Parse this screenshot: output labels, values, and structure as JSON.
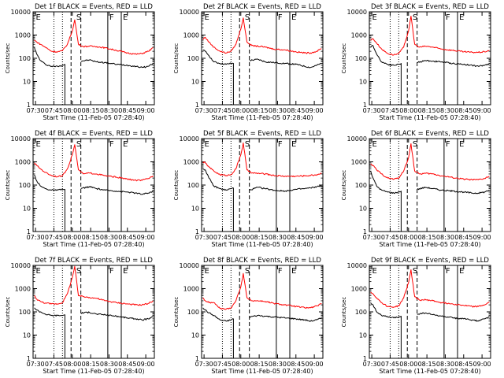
{
  "figure": {
    "title_template": "Det {n}f BLACK = Events, RED = LLD",
    "xlabel": "Start Time (11-Feb-05 07:28:40)",
    "ylabel": "Counts/sec",
    "xticks": [
      "07:30",
      "07:45",
      "08:00",
      "08:15",
      "08:30",
      "08:45",
      "09:00"
    ],
    "yticks": [
      "1",
      "10",
      "100",
      "1000",
      "10000"
    ],
    "markers": [
      "E",
      "S",
      "F",
      "E"
    ],
    "colors": {
      "events": "#000000",
      "lld": "#ff0000"
    }
  },
  "chart_data": [
    {
      "type": "line",
      "title": "Det 1f BLACK = Events, RED = LLD",
      "xlabel": "Start Time (11-Feb-05 07:28:40)",
      "ylabel": "Counts/sec",
      "yscale": "log",
      "ylim": [
        1,
        10000
      ],
      "xlim": [
        "07:28",
        "09:07"
      ],
      "series": [
        {
          "name": "Events",
          "x": [
            "07:29",
            "07:31",
            "07:34",
            "07:38",
            "07:43",
            "07:48",
            "07:52",
            "07:54",
            "07:59",
            "08:07",
            "08:14",
            "08:20",
            "08:27",
            "08:36",
            "08:45",
            "08:52",
            "08:57",
            "09:02",
            "09:06"
          ],
          "values": [
            300,
            150,
            80,
            55,
            45,
            45,
            50,
            55,
            null,
            75,
            85,
            70,
            65,
            55,
            50,
            45,
            40,
            45,
            60
          ]
        },
        {
          "name": "LLD",
          "x": [
            "07:29",
            "07:31",
            "07:34",
            "07:38",
            "07:43",
            "07:48",
            "07:52",
            "07:56",
            "08:00",
            "08:02",
            "08:05",
            "08:09",
            "08:14",
            "08:20",
            "08:27",
            "08:36",
            "08:45",
            "08:52",
            "08:57",
            "09:02",
            "09:06"
          ],
          "values": [
            600,
            500,
            400,
            300,
            200,
            190,
            210,
            400,
            1500,
            4500,
            400,
            320,
            330,
            320,
            280,
            220,
            170,
            150,
            160,
            200,
            280
          ]
        }
      ]
    },
    {
      "type": "line",
      "title": "Det 2f BLACK = Events, RED = LLD",
      "xlabel": "Start Time (11-Feb-05 07:28:40)",
      "ylabel": "Counts/sec",
      "yscale": "log",
      "ylim": [
        1,
        10000
      ],
      "xlim": [
        "07:28",
        "09:07"
      ],
      "series": [
        {
          "name": "Events",
          "x": [
            "07:29",
            "07:31",
            "07:34",
            "07:38",
            "07:43",
            "07:48",
            "07:52",
            "07:54",
            "07:59",
            "08:07",
            "08:14",
            "08:20",
            "08:27",
            "08:36",
            "08:45",
            "08:52",
            "08:57",
            "09:02",
            "09:06"
          ],
          "values": [
            220,
            200,
            130,
            70,
            60,
            55,
            60,
            60,
            null,
            80,
            90,
            70,
            65,
            60,
            55,
            45,
            40,
            50,
            60
          ]
        },
        {
          "name": "LLD",
          "x": [
            "07:29",
            "07:31",
            "07:34",
            "07:38",
            "07:43",
            "07:48",
            "07:52",
            "07:56",
            "08:00",
            "08:02",
            "08:05",
            "08:09",
            "08:14",
            "08:20",
            "08:27",
            "08:36",
            "08:45",
            "08:52",
            "08:57",
            "09:02",
            "09:06"
          ],
          "values": [
            650,
            800,
            500,
            300,
            200,
            170,
            200,
            400,
            1800,
            5500,
            500,
            350,
            330,
            300,
            250,
            230,
            190,
            170,
            170,
            200,
            260
          ]
        }
      ]
    },
    {
      "type": "line",
      "title": "Det 3f BLACK = Events, RED = LLD",
      "xlabel": "Start Time (11-Feb-05 07:28:40)",
      "ylabel": "Counts/sec",
      "yscale": "log",
      "ylim": [
        1,
        10000
      ],
      "xlim": [
        "07:28",
        "09:07"
      ],
      "series": [
        {
          "name": "Events",
          "x": [
            "07:29",
            "07:31",
            "07:34",
            "07:38",
            "07:43",
            "07:48",
            "07:52",
            "07:54",
            "07:59",
            "08:07",
            "08:14",
            "08:20",
            "08:27",
            "08:36",
            "08:45",
            "08:52",
            "08:57",
            "09:02",
            "09:06"
          ],
          "values": [
            300,
            350,
            150,
            70,
            55,
            50,
            55,
            60,
            null,
            65,
            80,
            75,
            70,
            60,
            55,
            50,
            45,
            50,
            60
          ]
        },
        {
          "name": "LLD",
          "x": [
            "07:29",
            "07:31",
            "07:34",
            "07:38",
            "07:43",
            "07:48",
            "07:52",
            "07:56",
            "08:00",
            "08:02",
            "08:05",
            "08:09",
            "08:14",
            "08:20",
            "08:27",
            "08:36",
            "08:45",
            "08:52",
            "08:57",
            "09:02",
            "09:06"
          ],
          "values": [
            600,
            700,
            450,
            250,
            160,
            140,
            160,
            300,
            1500,
            6500,
            400,
            300,
            330,
            300,
            250,
            220,
            190,
            180,
            180,
            190,
            220
          ]
        }
      ]
    },
    {
      "type": "line",
      "title": "Det 4f BLACK = Events, RED = LLD",
      "xlabel": "Start Time (11-Feb-05 07:28:40)",
      "ylabel": "Counts/sec",
      "yscale": "log",
      "ylim": [
        1,
        10000
      ],
      "xlim": [
        "07:28",
        "09:07"
      ],
      "series": [
        {
          "name": "Events",
          "x": [
            "07:29",
            "07:31",
            "07:34",
            "07:38",
            "07:43",
            "07:48",
            "07:52",
            "07:54",
            "07:59",
            "08:07",
            "08:14",
            "08:20",
            "08:27",
            "08:36",
            "08:45",
            "08:52",
            "08:57",
            "09:02",
            "09:06"
          ],
          "values": [
            280,
            150,
            90,
            70,
            60,
            60,
            65,
            65,
            null,
            70,
            85,
            70,
            60,
            55,
            50,
            45,
            40,
            45,
            55
          ]
        },
        {
          "name": "LLD",
          "x": [
            "07:29",
            "07:31",
            "07:34",
            "07:38",
            "07:43",
            "07:48",
            "07:52",
            "07:56",
            "08:00",
            "08:02",
            "08:05",
            "08:09",
            "08:14",
            "08:20",
            "08:27",
            "08:36",
            "08:45",
            "08:52",
            "08:57",
            "09:02",
            "09:06"
          ],
          "values": [
            900,
            700,
            500,
            350,
            260,
            230,
            250,
            500,
            2000,
            5500,
            450,
            300,
            330,
            300,
            250,
            220,
            180,
            160,
            160,
            190,
            250
          ]
        }
      ]
    },
    {
      "type": "line",
      "title": "Det 5f BLACK = Events, RED = LLD",
      "xlabel": "Start Time (11-Feb-05 07:28:40)",
      "ylabel": "Counts/sec",
      "yscale": "log",
      "ylim": [
        1,
        10000
      ],
      "xlim": [
        "07:28",
        "09:07"
      ],
      "series": [
        {
          "name": "Events",
          "x": [
            "07:29",
            "07:31",
            "07:34",
            "07:38",
            "07:43",
            "07:48",
            "07:52",
            "07:54",
            "07:59",
            "08:07",
            "08:14",
            "08:20",
            "08:27",
            "08:36",
            "08:45",
            "08:52",
            "08:57",
            "09:02",
            "09:06"
          ],
          "values": [
            500,
            450,
            200,
            90,
            70,
            60,
            70,
            75,
            null,
            60,
            80,
            70,
            60,
            55,
            65,
            70,
            75,
            85,
            95
          ]
        },
        {
          "name": "LLD",
          "x": [
            "07:29",
            "07:31",
            "07:34",
            "07:38",
            "07:43",
            "07:48",
            "07:52",
            "07:56",
            "08:00",
            "08:02",
            "08:05",
            "08:09",
            "08:14",
            "08:20",
            "08:27",
            "08:36",
            "08:45",
            "08:52",
            "08:57",
            "09:02",
            "09:06"
          ],
          "values": [
            1000,
            900,
            600,
            400,
            280,
            260,
            280,
            500,
            2000,
            6500,
            450,
            330,
            320,
            300,
            260,
            240,
            240,
            250,
            260,
            280,
            320
          ]
        }
      ]
    },
    {
      "type": "line",
      "title": "Det 6f BLACK = Events, RED = LLD",
      "xlabel": "Start Time (11-Feb-05 07:28:40)",
      "ylabel": "Counts/sec",
      "yscale": "log",
      "ylim": [
        1,
        10000
      ],
      "xlim": [
        "07:28",
        "09:07"
      ],
      "series": [
        {
          "name": "Events",
          "x": [
            "07:29",
            "07:31",
            "07:34",
            "07:38",
            "07:43",
            "07:48",
            "07:52",
            "07:54",
            "07:59",
            "08:07",
            "08:14",
            "08:20",
            "08:27",
            "08:36",
            "08:45",
            "08:52",
            "08:57",
            "09:02",
            "09:06"
          ],
          "values": [
            400,
            200,
            90,
            60,
            50,
            45,
            50,
            55,
            null,
            65,
            80,
            70,
            60,
            55,
            50,
            45,
            45,
            50,
            60
          ]
        },
        {
          "name": "LLD",
          "x": [
            "07:29",
            "07:31",
            "07:34",
            "07:38",
            "07:43",
            "07:48",
            "07:52",
            "07:56",
            "08:00",
            "08:02",
            "08:05",
            "08:09",
            "08:14",
            "08:20",
            "08:27",
            "08:36",
            "08:45",
            "08:52",
            "08:57",
            "09:02",
            "09:06"
          ],
          "values": [
            800,
            700,
            450,
            300,
            200,
            180,
            200,
            400,
            1500,
            6000,
            400,
            300,
            320,
            300,
            250,
            210,
            180,
            170,
            170,
            190,
            240
          ]
        }
      ]
    },
    {
      "type": "line",
      "title": "Det 7f BLACK = Events, RED = LLD",
      "xlabel": "Start Time (11-Feb-05 07:28:40)",
      "ylabel": "Counts/sec",
      "yscale": "log",
      "ylim": [
        1,
        10000
      ],
      "xlim": [
        "07:28",
        "09:07"
      ],
      "series": [
        {
          "name": "Events",
          "x": [
            "07:29",
            "07:31",
            "07:34",
            "07:38",
            "07:43",
            "07:48",
            "07:52",
            "07:54",
            "07:59",
            "08:07",
            "08:14",
            "08:20",
            "08:27",
            "08:36",
            "08:45",
            "08:52",
            "08:57",
            "09:02",
            "09:06"
          ],
          "values": [
            150,
            120,
            100,
            80,
            70,
            70,
            70,
            75,
            null,
            90,
            95,
            80,
            75,
            65,
            55,
            50,
            45,
            50,
            60
          ]
        },
        {
          "name": "LLD",
          "x": [
            "07:29",
            "07:31",
            "07:34",
            "07:38",
            "07:43",
            "07:48",
            "07:52",
            "07:56",
            "08:00",
            "08:02",
            "08:05",
            "08:09",
            "08:14",
            "08:20",
            "08:27",
            "08:36",
            "08:45",
            "08:52",
            "08:57",
            "09:02",
            "09:06"
          ],
          "values": [
            500,
            350,
            280,
            240,
            220,
            220,
            250,
            600,
            3000,
            9000,
            500,
            450,
            420,
            380,
            300,
            250,
            220,
            200,
            200,
            230,
            300
          ]
        }
      ]
    },
    {
      "type": "line",
      "title": "Det 8f BLACK = Events, RED = LLD",
      "xlabel": "Start Time (11-Feb-05 07:28:40)",
      "ylabel": "Counts/sec",
      "yscale": "log",
      "ylim": [
        1,
        10000
      ],
      "xlim": [
        "07:28",
        "09:07"
      ],
      "series": [
        {
          "name": "Events",
          "x": [
            "07:29",
            "07:31",
            "07:34",
            "07:38",
            "07:43",
            "07:48",
            "07:52",
            "07:54",
            "07:59",
            "08:07",
            "08:14",
            "08:20",
            "08:27",
            "08:36",
            "08:45",
            "08:52",
            "08:57",
            "09:02",
            "09:06"
          ],
          "values": [
            150,
            120,
            90,
            70,
            45,
            40,
            45,
            50,
            null,
            60,
            70,
            65,
            60,
            55,
            50,
            45,
            40,
            45,
            55
          ]
        },
        {
          "name": "LLD",
          "x": [
            "07:29",
            "07:31",
            "07:34",
            "07:38",
            "07:43",
            "07:48",
            "07:52",
            "07:56",
            "08:00",
            "08:02",
            "08:05",
            "08:09",
            "08:14",
            "08:20",
            "08:27",
            "08:36",
            "08:45",
            "08:52",
            "08:57",
            "09:02",
            "09:06"
          ],
          "values": [
            400,
            300,
            250,
            250,
            140,
            130,
            150,
            300,
            1200,
            4500,
            400,
            300,
            300,
            280,
            230,
            200,
            170,
            150,
            150,
            180,
            220
          ]
        }
      ]
    },
    {
      "type": "line",
      "title": "Det 9f BLACK = Events, RED = LLD",
      "xlabel": "Start Time (11-Feb-05 07:28:40)",
      "ylabel": "Counts/sec",
      "yscale": "log",
      "ylim": [
        1,
        10000
      ],
      "xlim": [
        "07:28",
        "09:07"
      ],
      "series": [
        {
          "name": "Events",
          "x": [
            "07:29",
            "07:31",
            "07:34",
            "07:38",
            "07:43",
            "07:48",
            "07:52",
            "07:54",
            "07:59",
            "08:07",
            "08:14",
            "08:20",
            "08:27",
            "08:36",
            "08:45",
            "08:52",
            "08:57",
            "09:02",
            "09:06"
          ],
          "values": [
            250,
            200,
            100,
            70,
            60,
            55,
            60,
            65,
            null,
            80,
            90,
            75,
            65,
            55,
            50,
            45,
            40,
            50,
            60
          ]
        },
        {
          "name": "LLD",
          "x": [
            "07:29",
            "07:31",
            "07:34",
            "07:38",
            "07:43",
            "07:48",
            "07:52",
            "07:56",
            "08:00",
            "08:02",
            "08:05",
            "08:09",
            "08:14",
            "08:20",
            "08:27",
            "08:36",
            "08:45",
            "08:52",
            "08:57",
            "09:02",
            "09:06"
          ],
          "values": [
            700,
            600,
            400,
            250,
            170,
            160,
            180,
            400,
            1800,
            6500,
            450,
            320,
            330,
            300,
            250,
            220,
            190,
            170,
            170,
            200,
            260
          ]
        }
      ]
    }
  ]
}
